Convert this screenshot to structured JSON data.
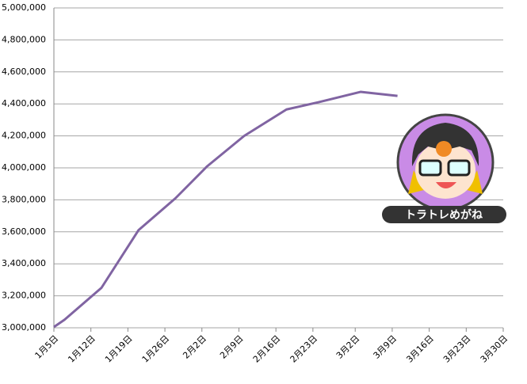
{
  "chart_data": {
    "type": "line",
    "x": [
      "1月5日",
      "1月7日",
      "1月14日",
      "1月21日",
      "1月28日",
      "2月3日",
      "2月10日",
      "2月18日",
      "2月24日",
      "3月3日",
      "3月10日"
    ],
    "series": [
      {
        "name": "value",
        "color": "#8064a2",
        "values": [
          3005000,
          3050000,
          3250000,
          3610000,
          3810000,
          4010000,
          4200000,
          4365000,
          4410000,
          4475000,
          4450000
        ]
      }
    ],
    "xlim": [
      "1月5日",
      "3月30日"
    ],
    "xticks": [
      "1月5日",
      "1月12日",
      "1月19日",
      "1月26日",
      "2月2日",
      "2月9日",
      "2月16日",
      "2月23日",
      "3月2日",
      "3月9日",
      "3月16日",
      "3月23日",
      "3月30日"
    ],
    "ylim": [
      3000000,
      5000000
    ],
    "yticks": [
      {
        "value": 3000000,
        "label": "3,000,000"
      },
      {
        "value": 3200000,
        "label": "3,200,000"
      },
      {
        "value": 3400000,
        "label": "3,400,000"
      },
      {
        "value": 3600000,
        "label": "3,600,000"
      },
      {
        "value": 3800000,
        "label": "3,800,000"
      },
      {
        "value": 4000000,
        "label": "4,000,000"
      },
      {
        "value": 4200000,
        "label": "4,200,000"
      },
      {
        "value": 4400000,
        "label": "4,400,000"
      },
      {
        "value": 4600000,
        "label": "4,600,000"
      },
      {
        "value": 4800000,
        "label": "4,800,000"
      },
      {
        "value": 5000000,
        "label": "5,000,000"
      }
    ],
    "grid": true,
    "logo_text": "トラトレめがね"
  }
}
